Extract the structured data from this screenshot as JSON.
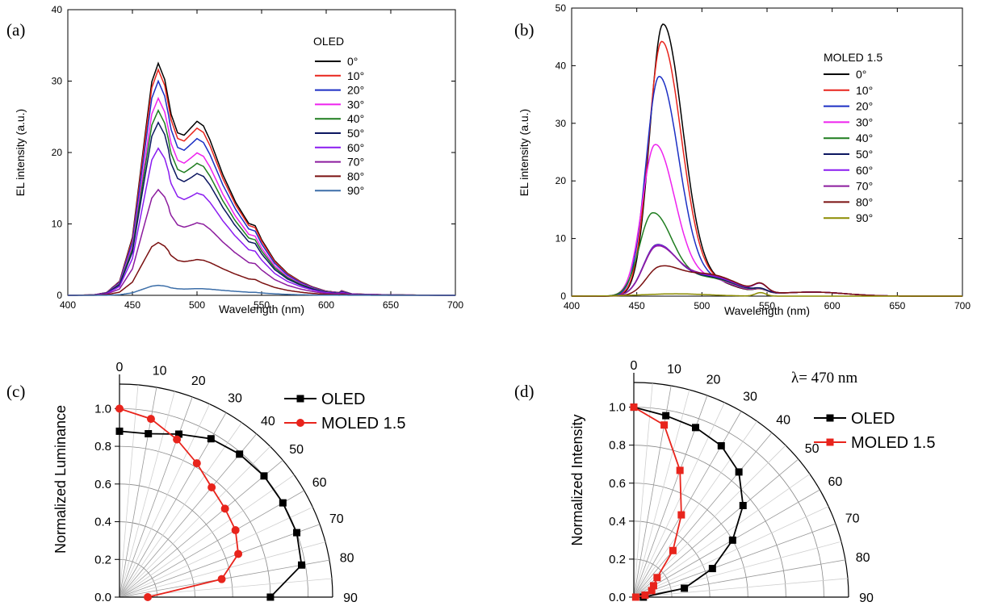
{
  "chart_data": [
    {
      "id": "a",
      "type": "line",
      "panel_label": "(a)",
      "xlabel": "Wavelength (nm)",
      "ylabel": "EL intensity (a.u.)",
      "xlim": [
        400,
        700
      ],
      "ylim": [
        0,
        40
      ],
      "xticks": [
        400,
        450,
        500,
        550,
        600,
        650,
        700
      ],
      "yticks": [
        0,
        10,
        20,
        30,
        40
      ],
      "legend_title": "OLED",
      "legend_position": "right",
      "x": [
        400,
        420,
        430,
        440,
        450,
        460,
        465,
        470,
        475,
        480,
        485,
        490,
        495,
        500,
        505,
        510,
        520,
        530,
        540,
        545,
        550,
        560,
        570,
        580,
        590,
        600,
        610,
        612,
        620,
        650,
        700
      ],
      "shape": [
        0,
        0.002,
        0.012,
        0.06,
        0.25,
        0.7,
        0.92,
        1.0,
        0.93,
        0.78,
        0.7,
        0.69,
        0.72,
        0.75,
        0.73,
        0.67,
        0.52,
        0.4,
        0.31,
        0.3,
        0.24,
        0.15,
        0.095,
        0.06,
        0.035,
        0.018,
        0.012,
        0.02,
        0.006,
        0.002,
        0
      ],
      "series": [
        {
          "name": "0°",
          "color": "#000000",
          "peak": 32.5
        },
        {
          "name": "10°",
          "color": "#e8241c",
          "peak": 31.6
        },
        {
          "name": "20°",
          "color": "#1c2fc4",
          "peak": 30.0
        },
        {
          "name": "30°",
          "color": "#ee22ee",
          "peak": 27.6
        },
        {
          "name": "40°",
          "color": "#1f7d1f",
          "peak": 25.9
        },
        {
          "name": "50°",
          "color": "#0c1660",
          "peak": 24.2
        },
        {
          "name": "60°",
          "color": "#8a1cf0",
          "peak": 20.6
        },
        {
          "name": "70°",
          "color": "#8c1c9e",
          "peak": 14.8
        },
        {
          "name": "80°",
          "color": "#7a1010",
          "peak": 7.4
        },
        {
          "name": "90°",
          "color": "#3c6ea8",
          "peak": 1.4
        }
      ]
    },
    {
      "id": "b",
      "type": "line",
      "panel_label": "(b)",
      "xlabel": "Wavelength (nm)",
      "ylabel": "EL intensity (a.u.)",
      "xlim": [
        400,
        700
      ],
      "ylim": [
        0,
        50
      ],
      "xticks": [
        400,
        450,
        500,
        550,
        600,
        650,
        700
      ],
      "yticks": [
        0,
        10,
        20,
        30,
        40,
        50
      ],
      "legend_title": "MOLED 1.5",
      "legend_position": "right",
      "series": [
        {
          "name": "0°",
          "color": "#000000",
          "peak": 46.5,
          "center": 470
        },
        {
          "name": "10°",
          "color": "#e8241c",
          "peak": 43.5,
          "center": 469
        },
        {
          "name": "20°",
          "color": "#1c2fc4",
          "peak": 37.5,
          "center": 467
        },
        {
          "name": "30°",
          "color": "#ee22ee",
          "peak": 25.8,
          "center": 464
        },
        {
          "name": "40°",
          "color": "#1f7d1f",
          "peak": 14.0,
          "center": 462
        },
        {
          "name": "50°",
          "color": "#0c1660",
          "peak": 8.3,
          "center": 465
        },
        {
          "name": "60°",
          "color": "#8a1cf0",
          "peak": 8.2,
          "center": 465
        },
        {
          "name": "70°",
          "color": "#8c1c9e",
          "peak": 8.0,
          "center": 465
        },
        {
          "name": "80°",
          "color": "#7a1010",
          "peak": 4.3,
          "center": 467
        },
        {
          "name": "90°",
          "color": "#8b8b00",
          "peak": 0.5,
          "center": 480
        }
      ]
    },
    {
      "id": "c",
      "type": "scatter",
      "panel_label": "(c)",
      "ylabel": "Normalized Luminance",
      "radial_ticks": [
        0.0,
        0.2,
        0.4,
        0.6,
        0.8,
        1.0
      ],
      "angle_ticks": [
        0,
        10,
        20,
        30,
        40,
        50,
        60,
        70,
        80,
        90
      ],
      "angles": [
        0,
        10,
        20,
        30,
        40,
        50,
        60,
        70,
        80,
        90
      ],
      "series": [
        {
          "name": "OLED",
          "color": "#000000",
          "marker": "square",
          "values": [
            0.88,
            0.88,
            0.92,
            0.97,
            0.99,
            1.0,
            1.0,
            1.0,
            0.98,
            0.8
          ]
        },
        {
          "name": "MOLED 1.5",
          "color": "#e8241c",
          "marker": "circle",
          "values": [
            1.0,
            0.96,
            0.89,
            0.82,
            0.76,
            0.73,
            0.71,
            0.67,
            0.55,
            0.15
          ]
        }
      ]
    },
    {
      "id": "d",
      "type": "scatter",
      "panel_label": "(d)",
      "ylabel": "Normalized Intensity",
      "annotation": "λ= 470 nm",
      "radial_ticks": [
        0.0,
        0.2,
        0.4,
        0.6,
        0.8,
        1.0
      ],
      "angle_ticks": [
        0,
        10,
        20,
        30,
        40,
        50,
        60,
        70,
        80,
        90
      ],
      "angles": [
        0,
        10,
        20,
        30,
        40,
        50,
        60,
        70,
        80,
        90
      ],
      "series": [
        {
          "name": "OLED",
          "color": "#000000",
          "marker": "square",
          "values": [
            1.0,
            0.97,
            0.95,
            0.92,
            0.86,
            0.75,
            0.6,
            0.44,
            0.27,
            0.05
          ]
        },
        {
          "name": "MOLED 1.5",
          "color": "#e8241c",
          "marker": "square",
          "values": [
            1.0,
            0.92,
            0.71,
            0.5,
            0.32,
            0.16,
            0.12,
            0.1,
            0.06,
            0.01
          ]
        }
      ]
    }
  ]
}
